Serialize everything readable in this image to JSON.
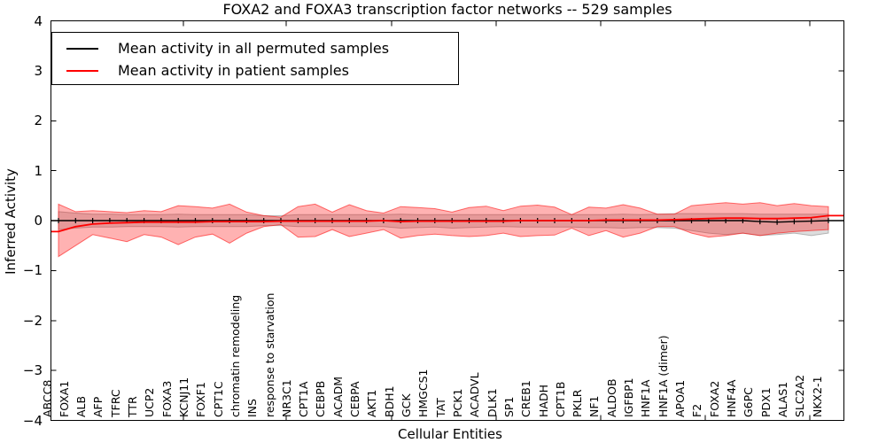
{
  "chart_data": {
    "type": "line",
    "title": "FOXA2 and FOXA3 transcription factor networks -- 529 samples",
    "xlabel": "Cellular Entities",
    "ylabel": "Inferred Activity",
    "ylim": [
      -4,
      4
    ],
    "yticks": [
      -4,
      -3,
      -2,
      -1,
      0,
      1,
      2,
      3,
      4
    ],
    "grid": false,
    "legend_position": "upper left",
    "sample_count": 529,
    "categories": [
      "ABCC8",
      "FOXA1",
      "ALB",
      "AFP",
      "TFRC",
      "TTR",
      "UCP2",
      "FOXA3",
      "KCNJ11",
      "FOXF1",
      "CPT1C",
      "chromatin remodeling",
      "INS",
      "response to starvation",
      "NR3C1",
      "CPT1A",
      "CEBPB",
      "ACADM",
      "CEBPA",
      "AKT1",
      "BDH1",
      "GCK",
      "HMGCS1",
      "TAT",
      "PCK1",
      "ACADVL",
      "DLK1",
      "SP1",
      "CREB1",
      "HADH",
      "CPT1B",
      "PKLR",
      "NF1",
      "ALDOB",
      "IGFBP1",
      "HNF1A",
      "HNF1A (dimer)",
      "APOA1",
      "F2",
      "FOXA2",
      "HNF4A",
      "G6PC",
      "PDX1",
      "ALAS1",
      "SLC2A2",
      "NKX2-1"
    ],
    "series": [
      {
        "name": "Mean activity in all permuted samples",
        "color": "#000000",
        "line_width": 1.4,
        "values": [
          0,
          0,
          0,
          0,
          0,
          0,
          0,
          0,
          0,
          0,
          0,
          0,
          0,
          0,
          0,
          0,
          0,
          0,
          0,
          0,
          0,
          0,
          0,
          0,
          0,
          0,
          0,
          0,
          0,
          0,
          0,
          0,
          0,
          0,
          0,
          0,
          0,
          0,
          0,
          0,
          0,
          -0.02,
          -0.03,
          -0.02,
          -0.01,
          0
        ],
        "band": {
          "upper": [
            0.18,
            0.15,
            0.13,
            0.13,
            0.12,
            0.12,
            0.12,
            0.13,
            0.12,
            0.12,
            0.12,
            0.12,
            0.1,
            0.1,
            0.12,
            0.12,
            0.12,
            0.12,
            0.12,
            0.12,
            0.13,
            0.12,
            0.12,
            0.12,
            0.12,
            0.12,
            0.12,
            0.12,
            0.12,
            0.12,
            0.12,
            0.12,
            0.12,
            0.13,
            0.12,
            0.13,
            0.14,
            0.14,
            0.14,
            0.14,
            0.14,
            0.13,
            0.13,
            0.13,
            0.13,
            0.13
          ],
          "lower": [
            -0.18,
            -0.15,
            -0.13,
            -0.13,
            -0.12,
            -0.12,
            -0.12,
            -0.13,
            -0.12,
            -0.12,
            -0.12,
            -0.12,
            -0.1,
            -0.1,
            -0.12,
            -0.12,
            -0.12,
            -0.12,
            -0.12,
            -0.12,
            -0.15,
            -0.14,
            -0.13,
            -0.15,
            -0.14,
            -0.13,
            -0.12,
            -0.13,
            -0.13,
            -0.13,
            -0.13,
            -0.14,
            -0.14,
            -0.15,
            -0.14,
            -0.14,
            -0.15,
            -0.2,
            -0.25,
            -0.28,
            -0.25,
            -0.3,
            -0.28,
            -0.25,
            -0.3,
            -0.25
          ],
          "color": "#808080",
          "opacity": 0.28
        }
      },
      {
        "name": "Mean activity in patient samples",
        "color": "#ff0000",
        "line_width": 1.8,
        "values": [
          -0.22,
          -0.12,
          -0.07,
          -0.05,
          -0.04,
          -0.03,
          -0.03,
          -0.03,
          -0.03,
          -0.02,
          -0.02,
          -0.02,
          -0.02,
          -0.01,
          -0.01,
          -0.01,
          -0.01,
          -0.01,
          -0.01,
          0,
          -0.02,
          -0.01,
          -0.01,
          -0.01,
          -0.01,
          -0.01,
          -0.01,
          0,
          0,
          0,
          0,
          0,
          0.01,
          0.01,
          0.01,
          0.01,
          0.02,
          0.03,
          0.04,
          0.05,
          0.05,
          0.04,
          0.04,
          0.05,
          0.06,
          0.1
        ],
        "band": {
          "upper": [
            0.33,
            0.18,
            0.2,
            0.18,
            0.16,
            0.2,
            0.18,
            0.3,
            0.28,
            0.25,
            0.33,
            0.17,
            0.1,
            0.07,
            0.28,
            0.33,
            0.17,
            0.32,
            0.2,
            0.15,
            0.28,
            0.26,
            0.24,
            0.17,
            0.26,
            0.29,
            0.2,
            0.29,
            0.31,
            0.27,
            0.12,
            0.27,
            0.25,
            0.32,
            0.25,
            0.13,
            0.13,
            0.3,
            0.33,
            0.36,
            0.33,
            0.36,
            0.3,
            0.34,
            0.3,
            0.28
          ],
          "lower": [
            -0.72,
            -0.5,
            -0.28,
            -0.35,
            -0.42,
            -0.28,
            -0.33,
            -0.48,
            -0.33,
            -0.27,
            -0.45,
            -0.25,
            -0.12,
            -0.08,
            -0.33,
            -0.32,
            -0.18,
            -0.32,
            -0.25,
            -0.18,
            -0.35,
            -0.3,
            -0.27,
            -0.3,
            -0.32,
            -0.3,
            -0.25,
            -0.32,
            -0.3,
            -0.29,
            -0.15,
            -0.3,
            -0.2,
            -0.33,
            -0.25,
            -0.12,
            -0.12,
            -0.25,
            -0.33,
            -0.3,
            -0.25,
            -0.3,
            -0.25,
            -0.22,
            -0.2,
            -0.18
          ],
          "color": "#ff0000",
          "opacity": 0.3
        }
      }
    ]
  }
}
